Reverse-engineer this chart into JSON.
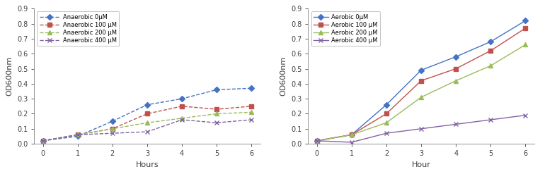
{
  "hours": [
    0,
    1,
    2,
    3,
    4,
    5,
    6
  ],
  "anaerobic": {
    "0uM": [
      0.02,
      0.05,
      0.15,
      0.26,
      0.3,
      0.36,
      0.37
    ],
    "100uM": [
      0.02,
      0.06,
      0.1,
      0.2,
      0.25,
      0.23,
      0.25
    ],
    "200uM": [
      0.02,
      0.06,
      0.1,
      0.14,
      0.17,
      0.2,
      0.21
    ],
    "400uM": [
      0.02,
      0.06,
      0.07,
      0.08,
      0.16,
      0.14,
      0.16
    ]
  },
  "aerobic": {
    "0uM": [
      0.02,
      0.06,
      0.26,
      0.49,
      0.58,
      0.68,
      0.82
    ],
    "100uM": [
      0.02,
      0.06,
      0.2,
      0.42,
      0.5,
      0.62,
      0.77
    ],
    "200uM": [
      0.02,
      0.06,
      0.14,
      0.31,
      0.42,
      0.52,
      0.66
    ],
    "400uM": [
      0.02,
      0.01,
      0.07,
      0.1,
      0.13,
      0.16,
      0.19
    ]
  },
  "colors": {
    "0uM": "#4472C4",
    "100uM": "#C0504D",
    "200uM": "#9BBB59",
    "400uM": "#8064A2"
  },
  "anaerobic_labels": [
    "Anaerobic 0μM",
    "Anaerobic 100 μM",
    "Anaerobic 200 μM",
    "Anaerobic 400 μM"
  ],
  "aerobic_labels": [
    "Aerobic 0μM",
    "Aerobic 100 μM",
    "Aerobic 200 μM",
    "Aerobic 400 μM"
  ],
  "ylabel": "OD600nm",
  "xlabel_left": "Hours",
  "xlabel_right": "Hour",
  "ylim": [
    0,
    0.9
  ],
  "yticks": [
    0,
    0.1,
    0.2,
    0.3,
    0.4,
    0.5,
    0.6,
    0.7,
    0.8,
    0.9
  ],
  "background_color": "#FFFFFF",
  "plot_bg": "#FFFFFF",
  "spine_color": "#808080"
}
